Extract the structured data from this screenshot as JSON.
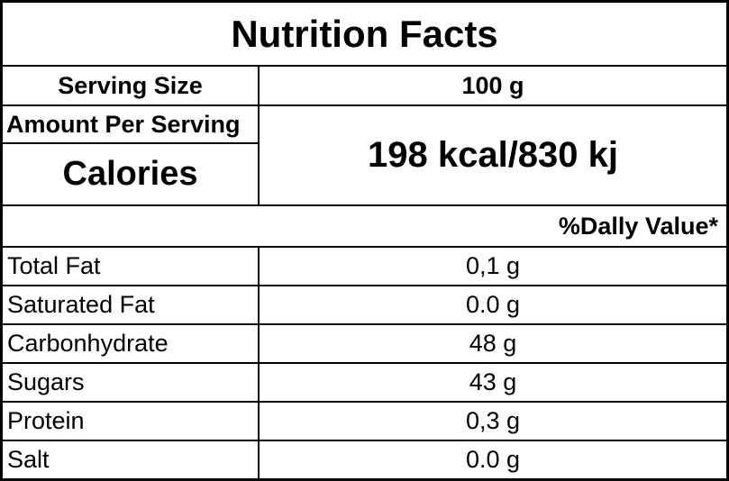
{
  "colors": {
    "border": "#000000",
    "text": "#000000",
    "background": "#ffffff"
  },
  "title": "Nutrition Facts",
  "serving": {
    "label": "Serving Size",
    "value": "100 g"
  },
  "amount_section": {
    "header": "Amount Per Serving",
    "calories_label": "Calories",
    "calories_value": "198 kcal/830 kj"
  },
  "daily_value_header": "%Dally Value*",
  "nutrients": [
    {
      "label": "Total Fat",
      "value": "0,1 g"
    },
    {
      "label": "Saturated Fat",
      "value": "0.0 g"
    },
    {
      "label": "Carbonhydrate",
      "value": "48 g"
    },
    {
      "label": "Sugars",
      "value": "43 g"
    },
    {
      "label": "Protein",
      "value": "0,3 g"
    },
    {
      "label": "Salt",
      "value": "0.0 g"
    }
  ]
}
